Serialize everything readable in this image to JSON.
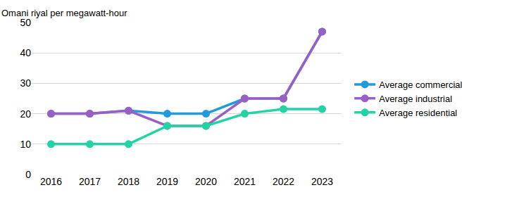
{
  "chart_data": {
    "type": "line",
    "ylabel": "Omani riyal per megawatt-hour",
    "categories": [
      "2016",
      "2017",
      "2018",
      "2019",
      "2020",
      "2021",
      "2022",
      "2023"
    ],
    "series": [
      {
        "name": "Average commercial",
        "color": "#1f9bde",
        "values": [
          20,
          20,
          21,
          20,
          20,
          25,
          25,
          47
        ]
      },
      {
        "name": "Average industrial",
        "color": "#9a5fc7",
        "values": [
          20,
          20,
          21,
          16,
          16,
          25,
          25,
          47
        ]
      },
      {
        "name": "Average residential",
        "color": "#22d3a6",
        "values": [
          10,
          10,
          10,
          16,
          16,
          20,
          21.5,
          21.5
        ]
      }
    ],
    "ylim": [
      0,
      50
    ],
    "yticks": [
      0,
      10,
      20,
      30,
      40,
      50
    ],
    "grid": true,
    "legend": "right",
    "marker": "circle"
  }
}
